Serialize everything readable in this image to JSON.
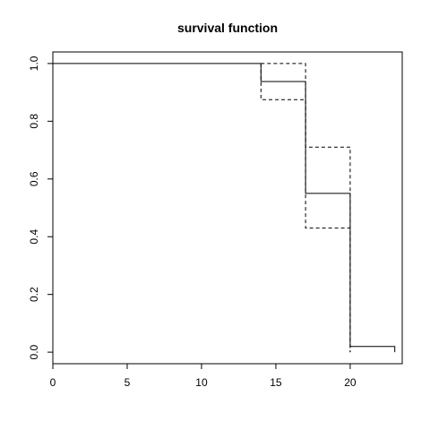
{
  "chart_data": {
    "type": "line",
    "title": "survival function",
    "xlabel": "",
    "ylabel": "",
    "xlim": [
      0,
      23.5
    ],
    "ylim": [
      -0.04,
      1.04
    ],
    "x_ticks": [
      0,
      5,
      10,
      15,
      20
    ],
    "y_ticks": [
      0.0,
      0.2,
      0.4,
      0.6,
      0.8,
      1.0
    ],
    "x_tick_labels": [
      "0",
      "5",
      "10",
      "15",
      "20"
    ],
    "y_tick_labels": [
      "0.0",
      "0.2",
      "0.4",
      "0.6",
      "0.8",
      "1.0"
    ],
    "grid": false,
    "legend": "none",
    "series": [
      {
        "style": "solid",
        "x": [
          0,
          14,
          14,
          17,
          17,
          20,
          20,
          23,
          23
        ],
        "y": [
          1.0,
          1.0,
          0.9375,
          0.9375,
          0.55,
          0.55,
          0.02,
          0.02,
          0.0
        ]
      },
      {
        "style": "dashed",
        "x": [
          14,
          14,
          17,
          17,
          20,
          20
        ],
        "y": [
          1.0,
          1.0,
          1.0,
          0.71,
          0.71,
          0.0
        ]
      },
      {
        "style": "dashed",
        "x": [
          14,
          14,
          17,
          17,
          20,
          20
        ],
        "y": [
          1.0,
          0.875,
          0.875,
          0.43,
          0.43,
          0.0
        ]
      }
    ]
  }
}
